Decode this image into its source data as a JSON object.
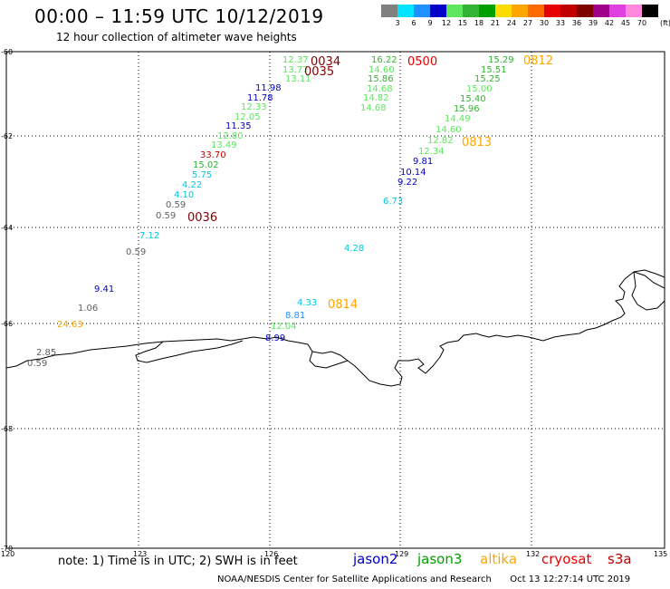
{
  "title": "00:00 – 11:59 UTC 10/12/2019",
  "subtitle": "12 hour collection of altimeter wave heights",
  "colorbar": {
    "unit": "(ft)",
    "labels": [
      "3",
      "6",
      "9",
      "12",
      "15",
      "18",
      "21",
      "24",
      "27",
      "30",
      "33",
      "36",
      "39",
      "42",
      "45",
      "70"
    ],
    "colors": [
      "#808080",
      "#00e5ff",
      "#1e90ff",
      "#0000c8",
      "#5ee65e",
      "#32b432",
      "#00a000",
      "#ffdc00",
      "#ffa500",
      "#ff6a00",
      "#e60000",
      "#c00000",
      "#800000",
      "#a0008c",
      "#e040e0",
      "#ff88dd",
      "#000000"
    ]
  },
  "axes": {
    "x_ticks": [
      "120",
      "123",
      "126",
      "129",
      "132",
      "135"
    ],
    "y_ticks": [
      "-60",
      "-62",
      "-64",
      "-66",
      "-68",
      "-70"
    ]
  },
  "observations": [
    {
      "t": "12.37",
      "c": "#5ee65e"
    },
    {
      "t": "13.77",
      "c": "#5ee65e"
    },
    {
      "t": "13.11",
      "c": "#5ee65e"
    },
    {
      "t": "11.98",
      "c": "#0000c8"
    },
    {
      "t": "11.78",
      "c": "#0000c8"
    },
    {
      "t": "12.33",
      "c": "#5ee65e"
    },
    {
      "t": "12.05",
      "c": "#5ee65e"
    },
    {
      "t": "11.35",
      "c": "#0000c8"
    },
    {
      "t": "12.80",
      "c": "#5ee65e"
    },
    {
      "t": "13.49",
      "c": "#5ee65e"
    },
    {
      "t": "33.70",
      "c": "#c00000"
    },
    {
      "t": "15.02",
      "c": "#32b432"
    },
    {
      "t": "5.75",
      "c": "#00c8e6"
    },
    {
      "t": "4.22",
      "c": "#00c8e6"
    },
    {
      "t": "4.10",
      "c": "#00c8e6"
    },
    {
      "t": "0.59",
      "c": "#606060"
    },
    {
      "t": "0.59",
      "c": "#606060"
    },
    {
      "t": "7.12",
      "c": "#00c8e6"
    },
    {
      "t": "0.59",
      "c": "#606060"
    },
    {
      "t": "9.41",
      "c": "#0000c8"
    },
    {
      "t": "1.06",
      "c": "#606060"
    },
    {
      "t": "24.63",
      "c": "#ffa500"
    },
    {
      "t": "2.85",
      "c": "#606060"
    },
    {
      "t": "0.59",
      "c": "#606060"
    },
    {
      "t": "16.22",
      "c": "#32b432"
    },
    {
      "t": "14.60",
      "c": "#5ee65e"
    },
    {
      "t": "15.86",
      "c": "#32b432"
    },
    {
      "t": "14.68",
      "c": "#5ee65e"
    },
    {
      "t": "14.82",
      "c": "#5ee65e"
    },
    {
      "t": "14.68",
      "c": "#5ee65e"
    },
    {
      "t": "15.29",
      "c": "#32b432"
    },
    {
      "t": "15.51",
      "c": "#32b432"
    },
    {
      "t": "15.25",
      "c": "#32b432"
    },
    {
      "t": "15.00",
      "c": "#5ee65e"
    },
    {
      "t": "15.40",
      "c": "#32b432"
    },
    {
      "t": "15.96",
      "c": "#32b432"
    },
    {
      "t": "14.49",
      "c": "#5ee65e"
    },
    {
      "t": "14.60",
      "c": "#5ee65e"
    },
    {
      "t": "12.82",
      "c": "#5ee65e"
    },
    {
      "t": "12.34",
      "c": "#5ee65e"
    },
    {
      "t": "9.81",
      "c": "#0000c8"
    },
    {
      "t": "10.14",
      "c": "#0000c8"
    },
    {
      "t": "9.22",
      "c": "#0000c8"
    },
    {
      "t": "6.73",
      "c": "#00c8e6"
    },
    {
      "t": "4.28",
      "c": "#00c8e6"
    },
    {
      "t": "4.33",
      "c": "#00c8e6"
    },
    {
      "t": "8.81",
      "c": "#1e90ff"
    },
    {
      "t": "12.04",
      "c": "#5ee65e"
    },
    {
      "t": "8.99",
      "c": "#0000c8"
    }
  ],
  "pass_times": [
    {
      "t": "0034",
      "c": "#800000"
    },
    {
      "t": "0035",
      "c": "#800000"
    },
    {
      "t": "0036",
      "c": "#800000"
    },
    {
      "t": "0500",
      "c": "#e60000"
    },
    {
      "t": "0812",
      "c": "#ffa500"
    },
    {
      "t": "0813",
      "c": "#ffa500"
    },
    {
      "t": "0814",
      "c": "#ffa500"
    }
  ],
  "note": "note: 1) Time is in UTC; 2) SWH is in feet",
  "satellites": [
    {
      "name": "jason2",
      "color": "#0000c8"
    },
    {
      "name": "jason3",
      "color": "#00a000"
    },
    {
      "name": "altika",
      "color": "#ffa500"
    },
    {
      "name": "cryosat",
      "color": "#e60000"
    },
    {
      "name": "s3a",
      "color": "#c00000"
    }
  ],
  "credit": "NOAA/NESDIS Center for Satellite Applications and Research",
  "generated": "Oct 13 12:27:14 UTC 2019"
}
